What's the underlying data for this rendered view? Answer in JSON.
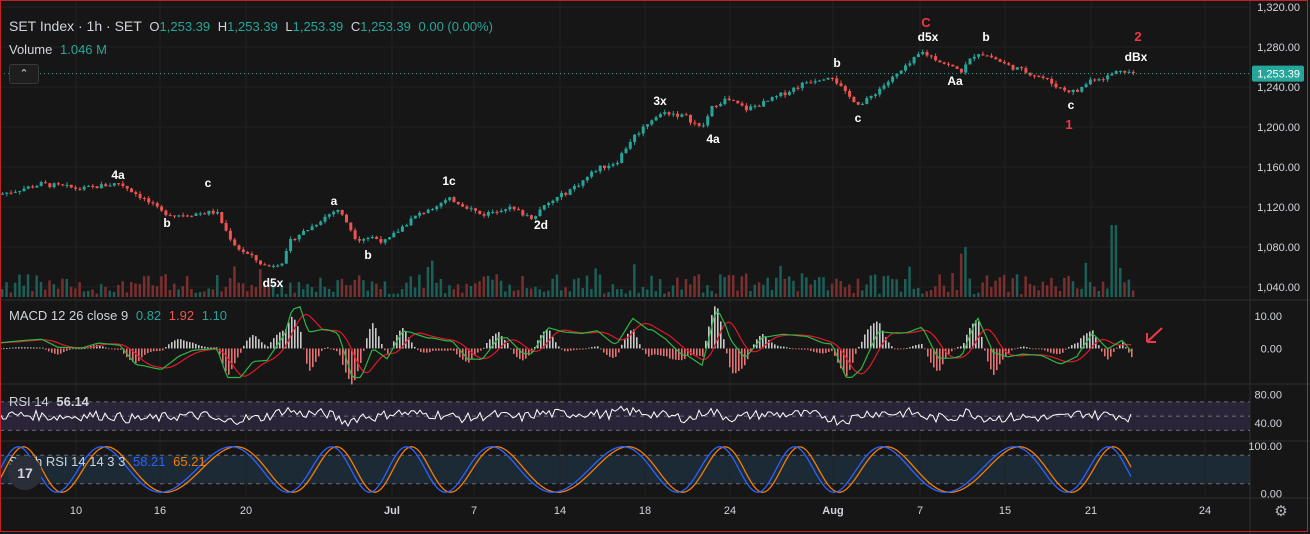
{
  "header": {
    "symbol": "SET Index · 1h · SET",
    "o_label": "O",
    "o_value": "1,253.39",
    "h_label": "H",
    "h_value": "1,253.39",
    "l_label": "L",
    "l_value": "1,253.39",
    "c_label": "C",
    "c_value": "1,253.39",
    "change": "0.00 (0.00%)",
    "volume_label": "Volume",
    "volume_value": "1.046 M",
    "collapse_glyph": "⌃"
  },
  "macd_header": {
    "label": "MACD 12 26 close 9",
    "v1": "0.82",
    "v2": "1.92",
    "v3": "1.10"
  },
  "rsi_header": {
    "label": "RSI 14",
    "v1": "56.14"
  },
  "stoch_header": {
    "label": "Stoch RSI 14 14 3 3",
    "v1": "58.21",
    "v2": "65.21"
  },
  "logo_text": "17",
  "colors": {
    "up": "#26a69a",
    "down": "#ef5350",
    "macd": "#2db546",
    "signal": "#e0182a",
    "rsi": "#ffffff",
    "stoch_k": "#2962ff",
    "stoch_d": "#f57c00",
    "annotation_red": "#f23645"
  },
  "icons": {
    "settings": "gear-icon",
    "arrow": "red-arrow-icon"
  },
  "chart_data": [
    {
      "type": "candlestick",
      "name": "SET Index",
      "y_ticks": [
        "1,320.00",
        "1,280.00",
        "1,240.00",
        "1,200.00",
        "1,160.00",
        "1,120.00",
        "1,080.00",
        "1,040.00"
      ],
      "ylim": [
        1027,
        1323
      ],
      "current_price": "1,253.39",
      "x_ticks": [
        "10",
        "16",
        "20",
        "Jul",
        "7",
        "14",
        "18",
        "24",
        "Aug",
        "7",
        "15",
        "21",
        "24"
      ],
      "x_tick_bold": [
        "Jul",
        "Aug"
      ],
      "close_path": [
        [
          0,
          1133
        ],
        [
          40,
          1143
        ],
        [
          80,
          1138
        ],
        [
          118,
          1144
        ],
        [
          140,
          1130
        ],
        [
          160,
          1115
        ],
        [
          175,
          1112
        ],
        [
          215,
          1115
        ],
        [
          225,
          1095
        ],
        [
          235,
          1080
        ],
        [
          250,
          1070
        ],
        [
          265,
          1060
        ],
        [
          282,
          1066
        ],
        [
          290,
          1088
        ],
        [
          310,
          1100
        ],
        [
          320,
          1108
        ],
        [
          336,
          1118
        ],
        [
          345,
          1105
        ],
        [
          355,
          1088
        ],
        [
          370,
          1090
        ],
        [
          385,
          1085
        ],
        [
          395,
          1095
        ],
        [
          410,
          1108
        ],
        [
          430,
          1120
        ],
        [
          450,
          1128
        ],
        [
          470,
          1118
        ],
        [
          480,
          1112
        ],
        [
          505,
          1120
        ],
        [
          530,
          1110
        ],
        [
          545,
          1122
        ],
        [
          565,
          1135
        ],
        [
          580,
          1145
        ],
        [
          595,
          1158
        ],
        [
          615,
          1165
        ],
        [
          630,
          1188
        ],
        [
          650,
          1208
        ],
        [
          665,
          1215
        ],
        [
          685,
          1210
        ],
        [
          700,
          1198
        ],
        [
          712,
          1222
        ],
        [
          725,
          1228
        ],
        [
          745,
          1218
        ],
        [
          765,
          1225
        ],
        [
          785,
          1235
        ],
        [
          805,
          1245
        ],
        [
          830,
          1252
        ],
        [
          845,
          1232
        ],
        [
          860,
          1222
        ],
        [
          880,
          1240
        ],
        [
          905,
          1260
        ],
        [
          920,
          1275
        ],
        [
          935,
          1268
        ],
        [
          950,
          1260
        ],
        [
          960,
          1256
        ],
        [
          975,
          1275
        ],
        [
          990,
          1270
        ],
        [
          1005,
          1262
        ],
        [
          1025,
          1255
        ],
        [
          1040,
          1250
        ],
        [
          1060,
          1238
        ],
        [
          1075,
          1235
        ],
        [
          1090,
          1248
        ],
        [
          1105,
          1250
        ],
        [
          1120,
          1258
        ],
        [
          1130,
          1254
        ]
      ],
      "volume_bars": "approx. 1 bar per 4.3 px, heights in pixels of panel",
      "annotations": [
        {
          "text": "4a",
          "x": 118,
          "price": 1148,
          "color": "white"
        },
        {
          "text": "b",
          "x": 167,
          "price": 1100,
          "color": "white"
        },
        {
          "text": "c",
          "x": 208,
          "price": 1140,
          "color": "white"
        },
        {
          "text": "d5x",
          "x": 273,
          "price": 1040,
          "color": "white"
        },
        {
          "text": "a",
          "x": 334,
          "price": 1122,
          "color": "white"
        },
        {
          "text": "b",
          "x": 368,
          "price": 1068,
          "color": "white"
        },
        {
          "text": "1c",
          "x": 449,
          "price": 1142,
          "color": "white"
        },
        {
          "text": "2d",
          "x": 541,
          "price": 1098,
          "color": "white"
        },
        {
          "text": "3x",
          "x": 660,
          "price": 1222,
          "color": "white"
        },
        {
          "text": "4a",
          "x": 713,
          "price": 1184,
          "color": "white"
        },
        {
          "text": "b",
          "x": 837,
          "price": 1260,
          "color": "white"
        },
        {
          "text": "c",
          "x": 858,
          "price": 1205,
          "color": "white"
        },
        {
          "text": "C",
          "x": 926,
          "price": 1300,
          "color": "red"
        },
        {
          "text": "d5x",
          "x": 928,
          "price": 1286,
          "color": "white"
        },
        {
          "text": "b",
          "x": 986,
          "price": 1286,
          "color": "white"
        },
        {
          "text": "Aa",
          "x": 955,
          "price": 1242,
          "color": "white"
        },
        {
          "text": "2",
          "x": 1138,
          "price": 1286,
          "color": "red"
        },
        {
          "text": "dBx",
          "x": 1136,
          "price": 1266,
          "color": "white"
        },
        {
          "text": "c",
          "x": 1071,
          "price": 1218,
          "color": "white"
        },
        {
          "text": "1",
          "x": 1069,
          "price": 1198,
          "color": "red"
        }
      ]
    },
    {
      "type": "line",
      "name": "MACD",
      "y_ticks": [
        "10.00",
        "0.00"
      ],
      "ylim": [
        -11,
        15
      ]
    },
    {
      "type": "line",
      "name": "RSI",
      "y_ticks": [
        "80.00",
        "40.00"
      ],
      "ylim": [
        15,
        95
      ],
      "bands": [
        70,
        50,
        30
      ]
    },
    {
      "type": "line",
      "name": "Stoch RSI",
      "y_ticks": [
        "100.00",
        "0.00"
      ],
      "ylim": [
        -10,
        110
      ],
      "bands": [
        80,
        20
      ]
    }
  ]
}
